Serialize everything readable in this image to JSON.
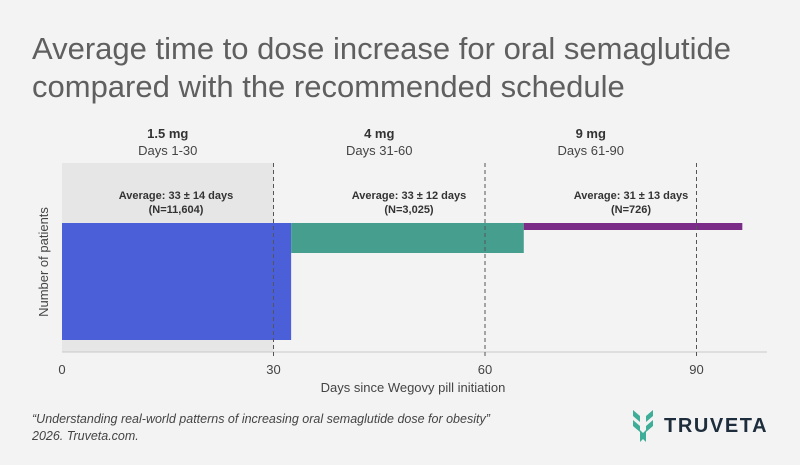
{
  "title": "Average time to dose increase for oral semaglutide compared with the recommended schedule",
  "citation_line1": "“Understanding real-world patterns of increasing oral semaglutide dose for obesity”",
  "citation_line2": "2026. Truveta.com.",
  "brand": "TRUVETA",
  "colors": {
    "dose_1_5": "#4a5fd8",
    "dose_4": "#459e8e",
    "dose_9": "#7b2b88",
    "plot_bg": "#e6e6e6",
    "logo": "#3fae98"
  },
  "chart_data": {
    "type": "bar",
    "xlabel": "Days since Wegovy pill initiation",
    "ylabel": "Number of patients",
    "xlim": [
      0,
      100
    ],
    "xticks": [
      0,
      30,
      60,
      90
    ],
    "reference_lines": [
      30,
      60,
      90
    ],
    "schedule": [
      {
        "dose": "1.5 mg",
        "days": "Days 1-30",
        "start": 0,
        "end": 30
      },
      {
        "dose": "4 mg",
        "days": "Days 31-60",
        "start": 30,
        "end": 60
      },
      {
        "dose": "9 mg",
        "days": "Days 61-90",
        "start": 60,
        "end": 90
      }
    ],
    "series": [
      {
        "dose": "1.5 mg",
        "start": 0,
        "end": 32.5,
        "patients": 11604,
        "average": "Average: 33 ± 14 days",
        "n_label": "(N=11,604)"
      },
      {
        "dose": "4 mg",
        "start": 32.5,
        "end": 65.5,
        "patients": 3025,
        "average": "Average: 33 ± 12 days",
        "n_label": "(N=3,025)"
      },
      {
        "dose": "9 mg",
        "start": 65.5,
        "end": 96.5,
        "patients": 726,
        "average": "Average: 31 ± 13 days",
        "n_label": "(N=726)"
      }
    ]
  }
}
